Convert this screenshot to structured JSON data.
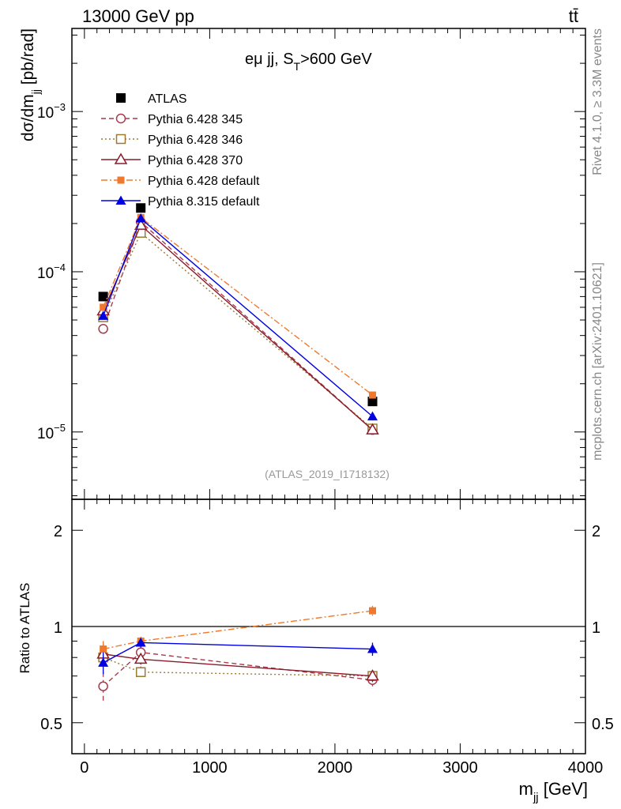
{
  "header": {
    "left": "13000 GeV pp",
    "right": "tt̄"
  },
  "side_labels": {
    "rivet": "Rivet 4.1.0, ≥ 3.3M events",
    "mcplots": "mcplots.cern.ch [arXiv:2401.10621]"
  },
  "chart_data": [
    {
      "type": "line",
      "panel": "main",
      "title": "eμ jj, S",
      "title_sub": "T",
      "title_rest": ">600 GeV",
      "ylabel_main": "dσ/dm",
      "ylabel_sub": "jj",
      "ylabel_unit": " [pb/rad]",
      "yscale": "log",
      "ylim": [
        3.8e-06,
        0.0033
      ],
      "xlim": [
        -100,
        4000
      ],
      "analysis_tag": "(ATLAS_2019_I1718132)",
      "ytick_labels": [
        {
          "base": "10",
          "exp": "−3",
          "value": 0.001
        },
        {
          "base": "10",
          "exp": "−4",
          "value": 0.0001
        },
        {
          "base": "10",
          "exp": "−5",
          "value": 1e-05
        }
      ],
      "x": [
        150,
        450,
        2300
      ],
      "series": [
        {
          "name": "ATLAS",
          "values": [
            7e-05,
            0.00025,
            1.55e-05
          ],
          "color": "#000000",
          "marker": "square-filled",
          "line": "none"
        },
        {
          "name": "Pythia 6.428 345",
          "values": [
            4.4e-05,
            0.000205,
            1.03e-05
          ],
          "color": "#a83a4c",
          "marker": "circle-open",
          "line": "dashed"
        },
        {
          "name": "Pythia 6.428 346",
          "values": [
            5.2e-05,
            0.000175,
            1.05e-05
          ],
          "color": "#9a7a2e",
          "marker": "square-open",
          "line": "dotted"
        },
        {
          "name": "Pythia 6.428 370",
          "values": [
            5.7e-05,
            0.000195,
            1.03e-05
          ],
          "color": "#8b1a2b",
          "marker": "triangle-open",
          "line": "solid"
        },
        {
          "name": "Pythia 6.428 default",
          "values": [
            6e-05,
            0.000218,
            1.7e-05
          ],
          "color": "#f0782c",
          "marker": "square-filled-small",
          "line": "dashdot"
        },
        {
          "name": "Pythia 8.315 default",
          "values": [
            5.3e-05,
            0.000215,
            1.25e-05
          ],
          "color": "#0000e0",
          "marker": "triangle-filled",
          "line": "solid"
        }
      ]
    },
    {
      "type": "line",
      "panel": "ratio",
      "ylabel": "Ratio to ATLAS",
      "xlabel_main": "m",
      "xlabel_sub": "jj",
      "xlabel_unit": " [GeV]",
      "yscale": "log",
      "ylim": [
        0.4,
        2.5
      ],
      "xlim": [
        -100,
        4000
      ],
      "ytick_labels": [
        "2",
        "1",
        "0.5"
      ],
      "xtick_labels": [
        "0",
        "1000",
        "2000",
        "3000",
        "4000"
      ],
      "reference_line": 1,
      "x": [
        150,
        450,
        2300
      ],
      "series": [
        {
          "name": "Pythia 6.428 345",
          "values": [
            0.65,
            0.83,
            0.68
          ],
          "errors": [
            0.07,
            0.03,
            0.03
          ]
        },
        {
          "name": "Pythia 6.428 346",
          "values": [
            0.8,
            0.72,
            0.7
          ],
          "errors": [
            0.05,
            0.03,
            0.03
          ]
        },
        {
          "name": "Pythia 6.428 370",
          "values": [
            0.82,
            0.79,
            0.7
          ],
          "errors": [
            0.06,
            0.03,
            0.03
          ]
        },
        {
          "name": "Pythia 6.428 default",
          "values": [
            0.85,
            0.9,
            1.12
          ],
          "errors": [
            0.05,
            0.03,
            0.04
          ]
        },
        {
          "name": "Pythia 8.315 default",
          "values": [
            0.77,
            0.89,
            0.85
          ],
          "errors": [
            0.06,
            0.03,
            0.04
          ]
        }
      ]
    }
  ]
}
